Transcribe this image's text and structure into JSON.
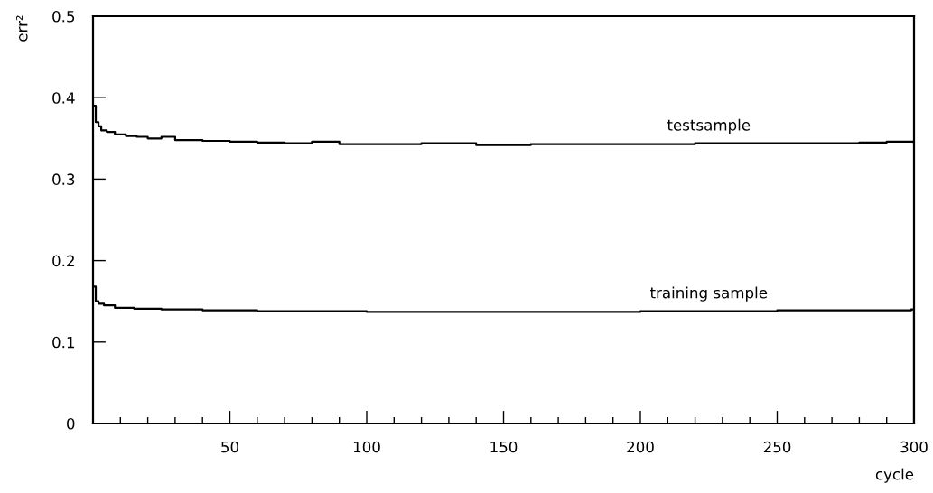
{
  "chart_data": {
    "type": "step",
    "xlabel": "cycle",
    "ylabel": "err²",
    "xlim": [
      0,
      300
    ],
    "ylim": [
      0,
      0.5
    ],
    "xticks": [
      {
        "value": 10,
        "label": null
      },
      {
        "value": 20,
        "label": null
      },
      {
        "value": 30,
        "label": null
      },
      {
        "value": 40,
        "label": null
      },
      50,
      {
        "value": 60,
        "label": null
      },
      {
        "value": 70,
        "label": null
      },
      {
        "value": 80,
        "label": null
      },
      {
        "value": 90,
        "label": null
      },
      100,
      {
        "value": 110,
        "label": null
      },
      {
        "value": 120,
        "label": null
      },
      {
        "value": 130,
        "label": null
      },
      {
        "value": 140,
        "label": null
      },
      150,
      {
        "value": 160,
        "label": null
      },
      {
        "value": 170,
        "label": null
      },
      {
        "value": 180,
        "label": null
      },
      {
        "value": 190,
        "label": null
      },
      200,
      {
        "value": 210,
        "label": null
      },
      {
        "value": 220,
        "label": null
      },
      {
        "value": 230,
        "label": null
      },
      {
        "value": 240,
        "label": null
      },
      250,
      {
        "value": 260,
        "label": null
      },
      {
        "value": 270,
        "label": null
      },
      {
        "value": 280,
        "label": null
      },
      {
        "value": 290,
        "label": null
      },
      300
    ],
    "yticks": [
      0,
      0.1,
      0.2,
      0.3,
      0.4,
      0.5
    ],
    "grid": false,
    "legend": false,
    "marker": "none",
    "line_style": "solid",
    "series": [
      {
        "name": "testsample",
        "color": "#000000",
        "x": [
          0,
          1,
          2,
          3,
          5,
          8,
          12,
          16,
          20,
          25,
          30,
          40,
          50,
          60,
          70,
          80,
          90,
          100,
          120,
          140,
          160,
          180,
          200,
          220,
          240,
          260,
          280,
          290,
          300
        ],
        "values": [
          0.39,
          0.37,
          0.365,
          0.36,
          0.358,
          0.355,
          0.353,
          0.352,
          0.35,
          0.352,
          0.348,
          0.347,
          0.346,
          0.345,
          0.344,
          0.346,
          0.343,
          0.343,
          0.344,
          0.342,
          0.343,
          0.343,
          0.343,
          0.344,
          0.344,
          0.344,
          0.345,
          0.346,
          0.345
        ]
      },
      {
        "name": "training sample",
        "color": "#000000",
        "x": [
          0,
          1,
          2,
          4,
          8,
          15,
          25,
          40,
          60,
          100,
          150,
          200,
          250,
          299,
          300
        ],
        "values": [
          0.168,
          0.15,
          0.147,
          0.145,
          0.142,
          0.141,
          0.14,
          0.139,
          0.138,
          0.137,
          0.137,
          0.138,
          0.139,
          0.14,
          0.0
        ]
      }
    ]
  }
}
